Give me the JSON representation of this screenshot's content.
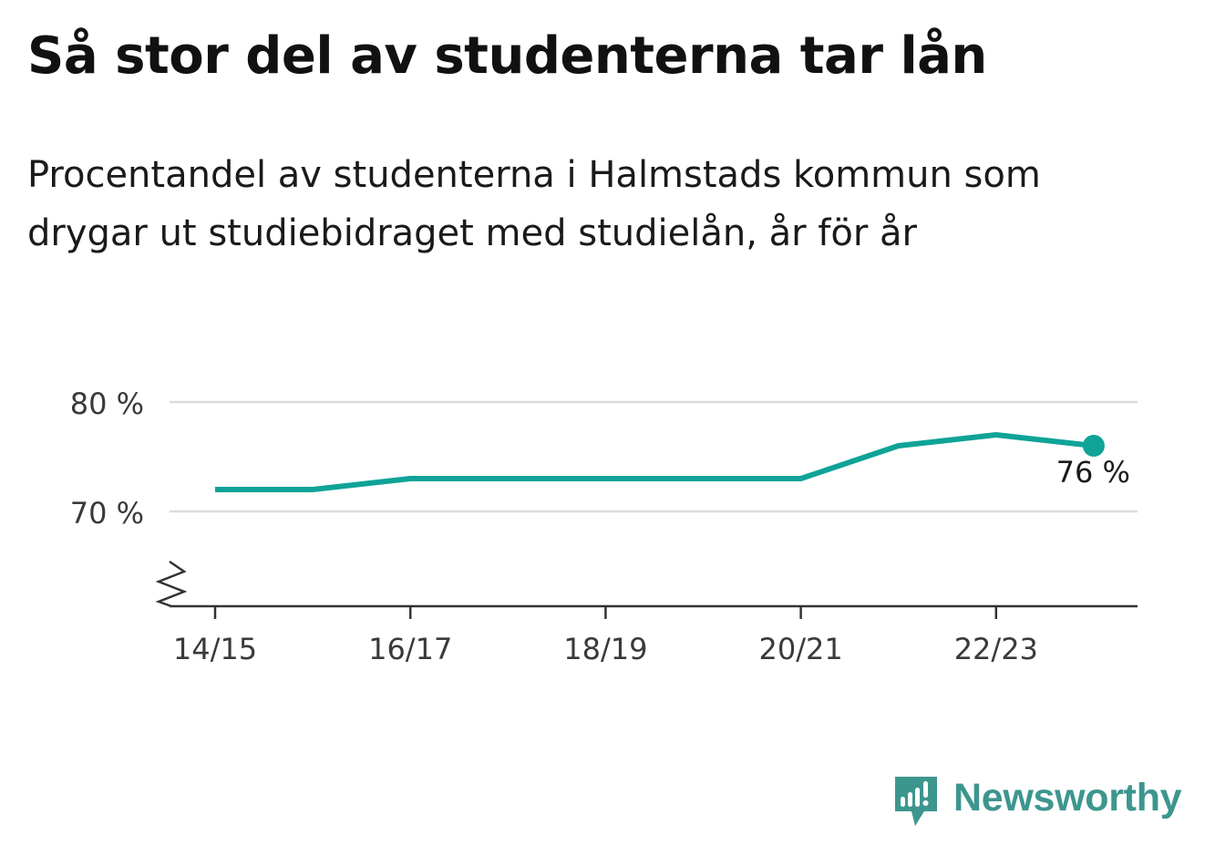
{
  "title": "Så stor del av studenterna tar lån",
  "subtitle": "Procentandel av studenterna i Halmstads kommun som drygar ut studiebidraget med studielån, år för år",
  "brand": {
    "name": "Newsworthy",
    "color": "#3d968e"
  },
  "chart_data": {
    "type": "line",
    "categories": [
      "14/15",
      "15/16",
      "16/17",
      "17/18",
      "18/19",
      "19/20",
      "20/21",
      "21/22",
      "22/23",
      "23/24"
    ],
    "series": [
      {
        "values": [
          72,
          72,
          73,
          73,
          73,
          73,
          73,
          76,
          77,
          76
        ],
        "color": "#0fa398"
      }
    ],
    "x_tick_labels": [
      "14/15",
      "16/17",
      "18/19",
      "20/21",
      "22/23"
    ],
    "y_ticks": [
      70,
      80
    ],
    "y_tick_labels": [
      "70 %",
      "80 %"
    ],
    "ylim": [
      61.5,
      80
    ],
    "y_axis_break": true,
    "grid": true,
    "end_label": "76 %"
  }
}
